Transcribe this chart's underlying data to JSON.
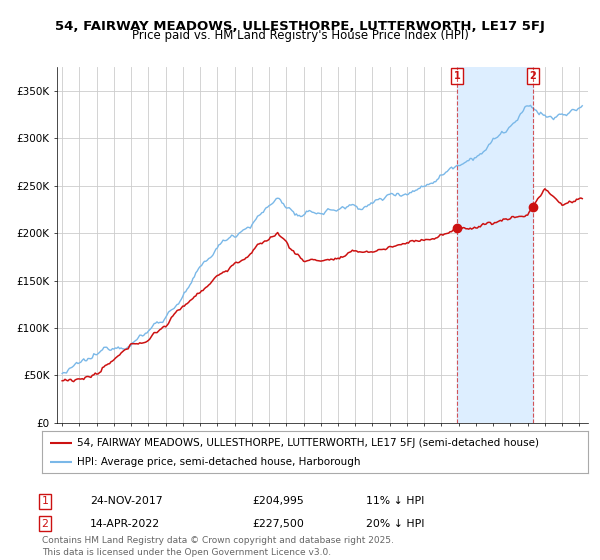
{
  "title_line1": "54, FAIRWAY MEADOWS, ULLESTHORPE, LUTTERWORTH, LE17 5FJ",
  "title_line2": "Price paid vs. HM Land Registry's House Price Index (HPI)",
  "ylim": [
    0,
    375000
  ],
  "yticks": [
    0,
    50000,
    100000,
    150000,
    200000,
    250000,
    300000,
    350000
  ],
  "ytick_labels": [
    "£0",
    "£50K",
    "£100K",
    "£150K",
    "£200K",
    "£250K",
    "£300K",
    "£350K"
  ],
  "xlim_start": 1994.7,
  "xlim_end": 2025.5,
  "hpi_color": "#7ab8e8",
  "price_color": "#cc1111",
  "shade_color": "#ddeeff",
  "annotation_color": "#cc1111",
  "background_color": "#ffffff",
  "grid_color": "#cccccc",
  "legend_label_red": "54, FAIRWAY MEADOWS, ULLESTHORPE, LUTTERWORTH, LE17 5FJ (semi-detached house)",
  "legend_label_blue": "HPI: Average price, semi-detached house, Harborough",
  "transaction1_date": "24-NOV-2017",
  "transaction1_price": 204995,
  "transaction1_year": 2017.9,
  "transaction1_pct": "11% ↓ HPI",
  "transaction2_date": "14-APR-2022",
  "transaction2_price": 227500,
  "transaction2_year": 2022.3,
  "transaction2_pct": "20% ↓ HPI",
  "footer": "Contains HM Land Registry data © Crown copyright and database right 2025.\nThis data is licensed under the Open Government Licence v3.0.",
  "title_fontsize": 9.5,
  "subtitle_fontsize": 8.5,
  "axis_fontsize": 7.5,
  "legend_fontsize": 7.5,
  "footer_fontsize": 6.5
}
